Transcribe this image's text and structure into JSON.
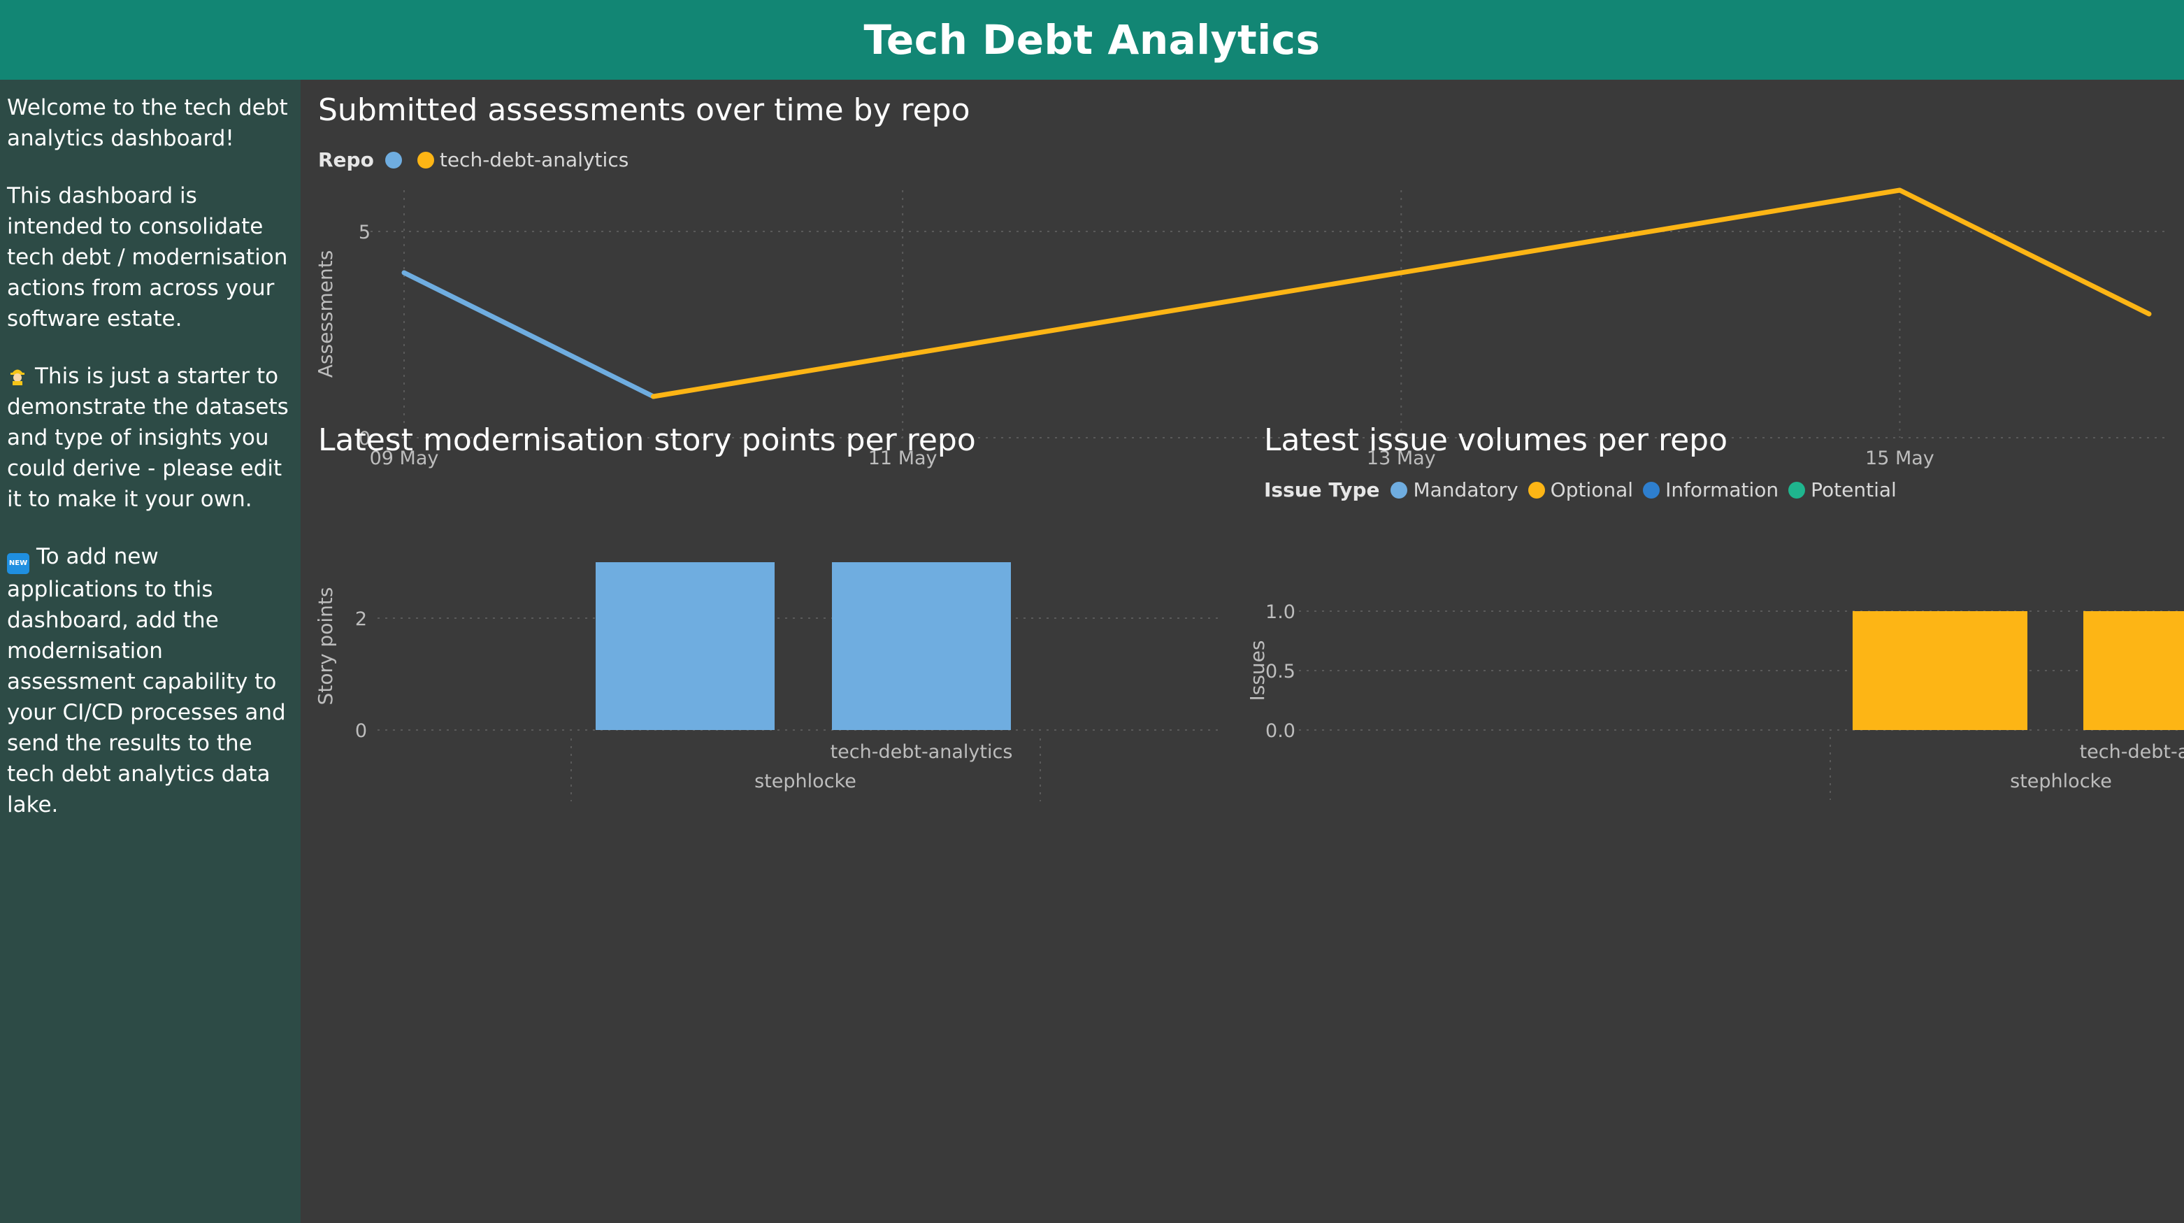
{
  "header": {
    "title": "Tech Debt Analytics"
  },
  "sidebar": {
    "paragraphs": [
      "Welcome to the tech debt analytics dashboard!",
      "This dashboard is intended to consolidate tech debt / modernisation actions from across your software estate.",
      "This is just a starter to demonstrate the datasets and type of insights you could derive - please edit it to make it your own.",
      "To add new applications to this dashboard, add the modernisation assessment capability to your CI/CD processes and send the results to the tech debt analytics data lake."
    ],
    "icons": [
      "construction-worker-icon",
      "new-badge-icon"
    ]
  },
  "colors": {
    "header": "#128674",
    "sidebar": "#2d4b46",
    "canvas": "#3a3a3a",
    "blue": "#6fade0",
    "yellow": "#fdb515",
    "darkblue": "#2e7fcf",
    "teal": "#1fb58e"
  },
  "visuals": {
    "assessments": {
      "title": "Submitted assessments over time by repo",
      "legend_title": "Repo",
      "legend_items": [
        {
          "label": "",
          "color": "#6fade0"
        },
        {
          "label": "tech-debt-analytics",
          "color": "#fdb515"
        }
      ]
    },
    "story_points": {
      "title": "Latest modernisation story points per repo"
    },
    "issues": {
      "title": "Latest issue volumes per repo",
      "legend_title": "Issue Type",
      "legend_items": [
        {
          "label": "Mandatory",
          "color": "#6fade0"
        },
        {
          "label": "Optional",
          "color": "#fdb515"
        },
        {
          "label": "Information",
          "color": "#2e7fcf"
        },
        {
          "label": "Potential",
          "color": "#1fb58e"
        }
      ]
    }
  },
  "chart_data": [
    {
      "type": "line",
      "title": "Submitted assessments over time by repo",
      "ylabel": "Assessments",
      "xlabel": "",
      "x_ticks": [
        "09 May",
        "11 May",
        "13 May",
        "15 May"
      ],
      "x_range": [
        "2022-05-09",
        "2022-05-16"
      ],
      "ylim": [
        0,
        6
      ],
      "y_ticks": [
        0,
        5
      ],
      "grid": true,
      "legend": "top-left",
      "series": [
        {
          "name": "",
          "color": "#6fade0",
          "x": [
            "2022-05-09",
            "2022-05-10"
          ],
          "values": [
            4,
            1
          ]
        },
        {
          "name": "tech-debt-analytics",
          "color": "#fdb515",
          "x": [
            "2022-05-10",
            "2022-05-15",
            "2022-05-16"
          ],
          "values": [
            1,
            6,
            3
          ]
        }
      ]
    },
    {
      "type": "bar",
      "title": "Latest modernisation story points per repo",
      "ylabel": "Story points",
      "xlabel": "",
      "group_label": "stephlocke",
      "categories": [
        "",
        "tech-debt-analytics"
      ],
      "values": [
        3,
        3
      ],
      "color": "#6fade0",
      "ylim": [
        0,
        3
      ],
      "y_ticks": [
        0,
        2
      ],
      "grid": true
    },
    {
      "type": "bar",
      "title": "Latest issue volumes per repo",
      "ylabel": "Issues",
      "xlabel": "",
      "group_label": "stephlocke",
      "categories": [
        "",
        "tech-debt-analytics"
      ],
      "series": [
        {
          "name": "Mandatory",
          "values": [
            0,
            0
          ]
        },
        {
          "name": "Optional",
          "values": [
            1,
            1
          ]
        },
        {
          "name": "Information",
          "values": [
            0,
            0
          ]
        },
        {
          "name": "Potential",
          "values": [
            0,
            0
          ]
        }
      ],
      "ylim": [
        0,
        1
      ],
      "y_ticks": [
        "0.0",
        "0.5",
        "1.0"
      ],
      "grid": true,
      "legend": "top-left"
    }
  ]
}
